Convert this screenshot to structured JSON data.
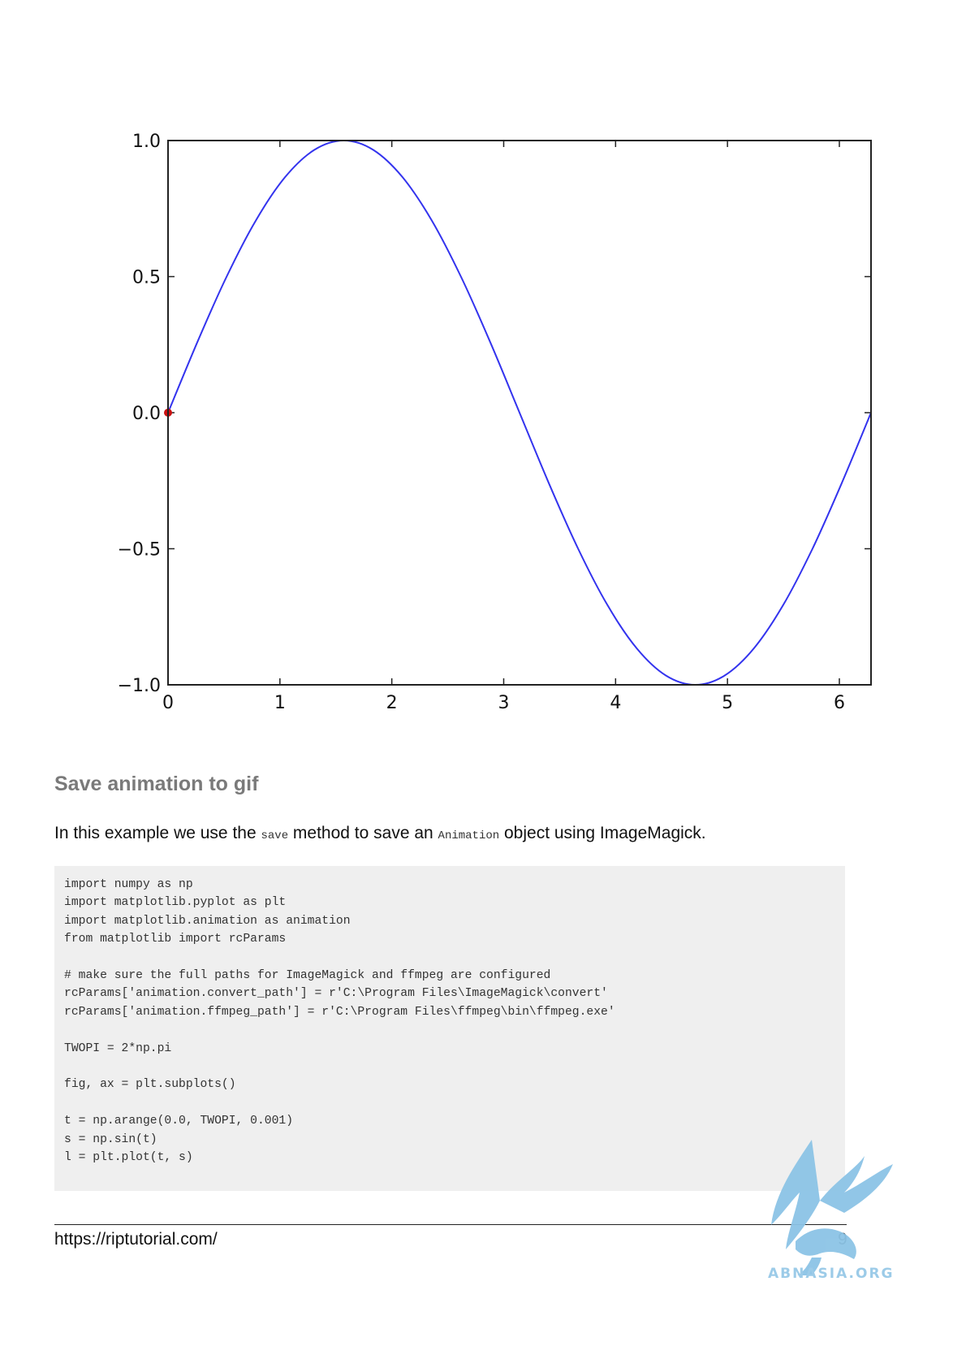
{
  "chart_data": {
    "type": "line",
    "title": "",
    "xlabel": "",
    "ylabel": "",
    "xlim": [
      0,
      6.283
    ],
    "ylim": [
      -1.0,
      1.0
    ],
    "xticks": [
      0,
      1,
      2,
      3,
      4,
      5,
      6
    ],
    "xtick_labels": [
      "0",
      "1",
      "2",
      "3",
      "4",
      "5",
      "6"
    ],
    "yticks": [
      1.0,
      0.5,
      0.0,
      -0.5,
      -1.0
    ],
    "ytick_labels": [
      "1.0",
      "0.5",
      "0.0",
      "−0.5",
      "−1.0"
    ],
    "grid": false,
    "series": [
      {
        "color": "#3333ee",
        "x": [
          0,
          0.2618,
          0.5236,
          0.7854,
          1.0472,
          1.309,
          1.5708,
          1.8326,
          2.0944,
          2.3562,
          2.618,
          2.8798,
          3.1416,
          3.4034,
          3.6652,
          3.927,
          4.1888,
          4.4506,
          4.7124,
          4.9742,
          5.236,
          5.4978,
          5.7596,
          6.0214,
          6.2832
        ],
        "y": [
          0,
          0.259,
          0.5,
          0.707,
          0.866,
          0.966,
          1.0,
          0.966,
          0.866,
          0.707,
          0.5,
          0.259,
          0,
          -0.259,
          -0.5,
          -0.707,
          -0.866,
          -0.966,
          -1.0,
          -0.966,
          -0.866,
          -0.707,
          -0.5,
          -0.259,
          0
        ]
      }
    ],
    "marker": {
      "x": 0,
      "y": 0,
      "color": "#cc1111"
    }
  },
  "section": {
    "title": "Save animation to gif"
  },
  "intro": {
    "part1": "In this example we use the ",
    "code1": "save",
    "part2": " method to save an ",
    "code2": "Animation",
    "part3": " object using ImageMagick."
  },
  "code": "import numpy as np\nimport matplotlib.pyplot as plt\nimport matplotlib.animation as animation\nfrom matplotlib import rcParams\n\n# make sure the full paths for ImageMagick and ffmpeg are configured\nrcParams['animation.convert_path'] = r'C:\\Program Files\\ImageMagick\\convert'\nrcParams['animation.ffmpeg_path'] = r'C:\\Program Files\\ffmpeg\\bin\\ffmpeg.exe'\n\nTWOPI = 2*np.pi\n\nfig, ax = plt.subplots()\n\nt = np.arange(0.0, TWOPI, 0.001)\ns = np.sin(t)\nl = plt.plot(t, s)",
  "footer": {
    "url": "https://riptutorial.com/",
    "page": "9"
  },
  "watermark": {
    "text": "ABNASIA.ORG",
    "icon": "griffin-logo-icon"
  }
}
